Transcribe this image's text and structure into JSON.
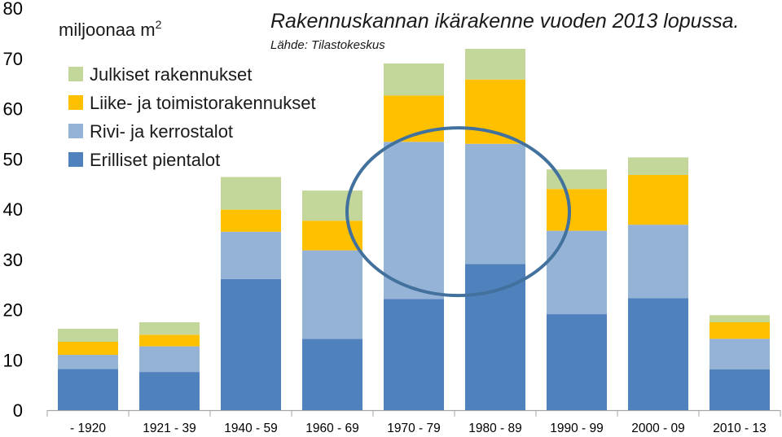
{
  "chart_data": {
    "type": "bar",
    "stacked": true,
    "title": "Rakennuskannan ikärakenne vuoden 2013 lopussa.",
    "subtitle": "Lähde: Tilastokeskus",
    "unit_label": "miljoonaa m",
    "unit_superscript": "2",
    "categories": [
      "- 1920",
      "1921 - 39",
      "1940 - 59",
      "1960 - 69",
      "1970 - 79",
      "1980 - 89",
      "1990 - 99",
      "2000 - 09",
      "2010 - 13"
    ],
    "ylim": [
      0,
      80
    ],
    "yticks": [
      0,
      10,
      20,
      30,
      40,
      50,
      60,
      70,
      80
    ],
    "grid": false,
    "legend_position": "top-left",
    "series": [
      {
        "name": "Erilliset pientalot",
        "color": "#4f81bd",
        "values": [
          8.2,
          7.6,
          26.1,
          14.2,
          22.1,
          29.1,
          19.1,
          22.3,
          8.1
        ]
      },
      {
        "name": "Rivi- ja kerrostalot",
        "color": "#95b3d7",
        "values": [
          2.8,
          5.1,
          9.4,
          17.6,
          31.3,
          23.9,
          16.6,
          14.6,
          6.1
        ]
      },
      {
        "name": "Liike- ja toimistorakennukset",
        "color": "#ffc000",
        "values": [
          2.6,
          2.3,
          4.4,
          5.9,
          9.2,
          12.8,
          8.3,
          9.9,
          3.3
        ]
      },
      {
        "name": "Julkiset rakennukset",
        "color": "#c4d79b",
        "values": [
          2.6,
          2.5,
          6.5,
          6.0,
          6.4,
          6.1,
          3.9,
          3.5,
          1.4
        ]
      }
    ],
    "legend_order": [
      "Julkiset rakennukset",
      "Liike- ja toimistorakennukset",
      "Rivi- ja kerrostalot",
      "Erilliset pientalot"
    ],
    "annotation": {
      "type": "ellipse",
      "color": "#41719c",
      "x_from_category": "1970 - 79",
      "x_to_category": "1980 - 89",
      "y_center": 39.5
    }
  }
}
